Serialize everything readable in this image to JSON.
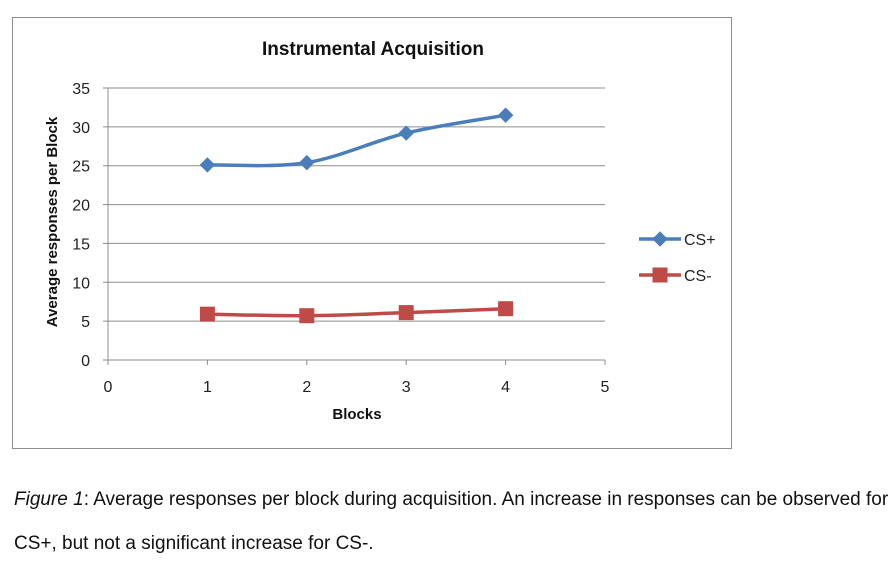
{
  "chart_data": {
    "type": "line",
    "title": "Instrumental Acquisition",
    "xlabel": "Blocks",
    "ylabel": "Average responses per Block",
    "xlim": [
      0,
      5
    ],
    "ylim": [
      0,
      35
    ],
    "xticks": [
      0,
      1,
      2,
      3,
      4,
      5
    ],
    "yticks": [
      0,
      5,
      10,
      15,
      20,
      25,
      30,
      35
    ],
    "grid": "horizontal",
    "legend_position": "right",
    "x": [
      1,
      2,
      3,
      4
    ],
    "series": [
      {
        "name": "CS+",
        "values": [
          25.1,
          25.4,
          29.2,
          31.5
        ],
        "color": "#4a7ebb",
        "marker": "diamond"
      },
      {
        "name": "CS-",
        "values": [
          5.9,
          5.7,
          6.1,
          6.6
        ],
        "color": "#be4b48",
        "marker": "square"
      }
    ]
  },
  "caption": {
    "figure_label": "Figure 1",
    "text": ": Average responses per block during acquisition. An increase in responses can be observed for CS+, but not a significant increase for CS-."
  }
}
